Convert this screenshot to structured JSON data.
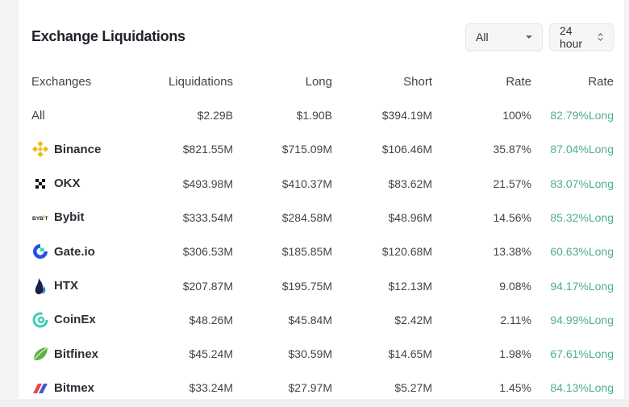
{
  "title": "Exchange Liquidations",
  "filters": {
    "exchange": "All",
    "period": "24 hour"
  },
  "columns": [
    "Exchanges",
    "Liquidations",
    "Long",
    "Short",
    "Rate",
    "Rate"
  ],
  "colors": {
    "long": "#4fae8f"
  },
  "rows": [
    {
      "name": "All",
      "icon": null,
      "liq": "$2.29B",
      "long": "$1.90B",
      "short": "$394.19M",
      "rate": "100%",
      "ratio": "82.79%Long"
    },
    {
      "name": "Binance",
      "icon": "binance-icon",
      "liq": "$821.55M",
      "long": "$715.09M",
      "short": "$106.46M",
      "rate": "35.87%",
      "ratio": "87.04%Long"
    },
    {
      "name": "OKX",
      "icon": "okx-icon",
      "liq": "$493.98M",
      "long": "$410.37M",
      "short": "$83.62M",
      "rate": "21.57%",
      "ratio": "83.07%Long"
    },
    {
      "name": "Bybit",
      "icon": "bybit-icon",
      "liq": "$333.54M",
      "long": "$284.58M",
      "short": "$48.96M",
      "rate": "14.56%",
      "ratio": "85.32%Long"
    },
    {
      "name": "Gate.io",
      "icon": "gateio-icon",
      "liq": "$306.53M",
      "long": "$185.85M",
      "short": "$120.68M",
      "rate": "13.38%",
      "ratio": "60.63%Long"
    },
    {
      "name": "HTX",
      "icon": "htx-icon",
      "liq": "$207.87M",
      "long": "$195.75M",
      "short": "$12.13M",
      "rate": "9.08%",
      "ratio": "94.17%Long"
    },
    {
      "name": "CoinEx",
      "icon": "coinex-icon",
      "liq": "$48.26M",
      "long": "$45.84M",
      "short": "$2.42M",
      "rate": "2.11%",
      "ratio": "94.99%Long"
    },
    {
      "name": "Bitfinex",
      "icon": "bitfinex-icon",
      "liq": "$45.24M",
      "long": "$30.59M",
      "short": "$14.65M",
      "rate": "1.98%",
      "ratio": "67.61%Long"
    },
    {
      "name": "Bitmex",
      "icon": "bitmex-icon",
      "liq": "$33.24M",
      "long": "$27.97M",
      "short": "$5.27M",
      "rate": "1.45%",
      "ratio": "84.13%Long"
    }
  ]
}
